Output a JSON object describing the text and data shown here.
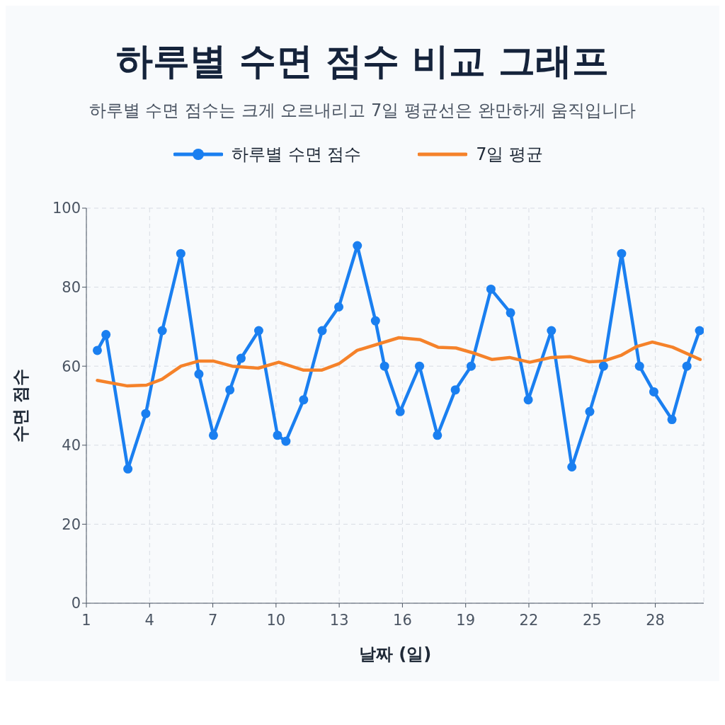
{
  "chart_data": {
    "type": "line",
    "title": "하루별 수면 점수 비교 그래프",
    "subtitle": "하루별 수면 점수는 크게 오르내리고 7일 평균선은 완만하게 움직입니다",
    "xlabel": "날짜 (일)",
    "ylabel": "수면 점수",
    "xlim": [
      1,
      30.3
    ],
    "xticks": [
      1,
      4,
      7,
      10,
      13,
      16,
      19,
      22,
      25,
      28
    ],
    "ylim": [
      0,
      100
    ],
    "yticks": [
      0,
      20,
      40,
      60,
      80,
      100
    ],
    "grid": true,
    "legend": "top",
    "line_style": "solid",
    "series": [
      {
        "name": "하루별 수면 점수",
        "color": "#1a7ff0",
        "marker": "circle",
        "x": [
          1.52,
          1.93,
          2.97,
          3.82,
          4.6,
          5.48,
          6.34,
          7.03,
          7.81,
          8.34,
          9.18,
          10.07,
          10.47,
          11.31,
          12.19,
          12.98,
          13.86,
          14.72,
          15.15,
          15.89,
          16.81,
          17.66,
          18.51,
          19.26,
          20.2,
          21.13,
          21.97,
          23.07,
          24.04,
          24.89,
          25.54,
          26.4,
          27.25,
          27.93,
          28.79,
          29.5,
          30.1
        ],
        "values": [
          64,
          68,
          34,
          48,
          69,
          88.5,
          58,
          42.5,
          54,
          62,
          69,
          42.5,
          41,
          51.5,
          69,
          75,
          90.5,
          71.5,
          60,
          48.5,
          60,
          42.5,
          54,
          60,
          79.5,
          73.5,
          51.5,
          69,
          34.5,
          48.5,
          60,
          88.5,
          60,
          53.5,
          46.5,
          60,
          69
        ]
      },
      {
        "name": "7일 평균",
        "color": "#f5822a",
        "marker": "none",
        "x": [
          1.52,
          2.95,
          3.85,
          4.59,
          5.49,
          6.34,
          7.02,
          7.92,
          9.16,
          10.13,
          11.31,
          12.16,
          13.01,
          13.85,
          15.83,
          16.85,
          17.69,
          18.54,
          19.33,
          20.24,
          21.08,
          22.04,
          23.06,
          23.97,
          24.87,
          25.55,
          26.4,
          27.13,
          27.86,
          28.82,
          30.13
        ],
        "values": [
          56.4,
          55,
          55.2,
          56.7,
          60,
          61.3,
          61.3,
          60,
          59.5,
          61,
          59,
          59,
          60.7,
          64,
          67.2,
          66.7,
          64.8,
          64.6,
          63.4,
          61.7,
          62.2,
          61,
          62.2,
          62.4,
          61.1,
          61.3,
          62.8,
          65,
          66.1,
          64.8,
          61.7
        ]
      }
    ]
  }
}
